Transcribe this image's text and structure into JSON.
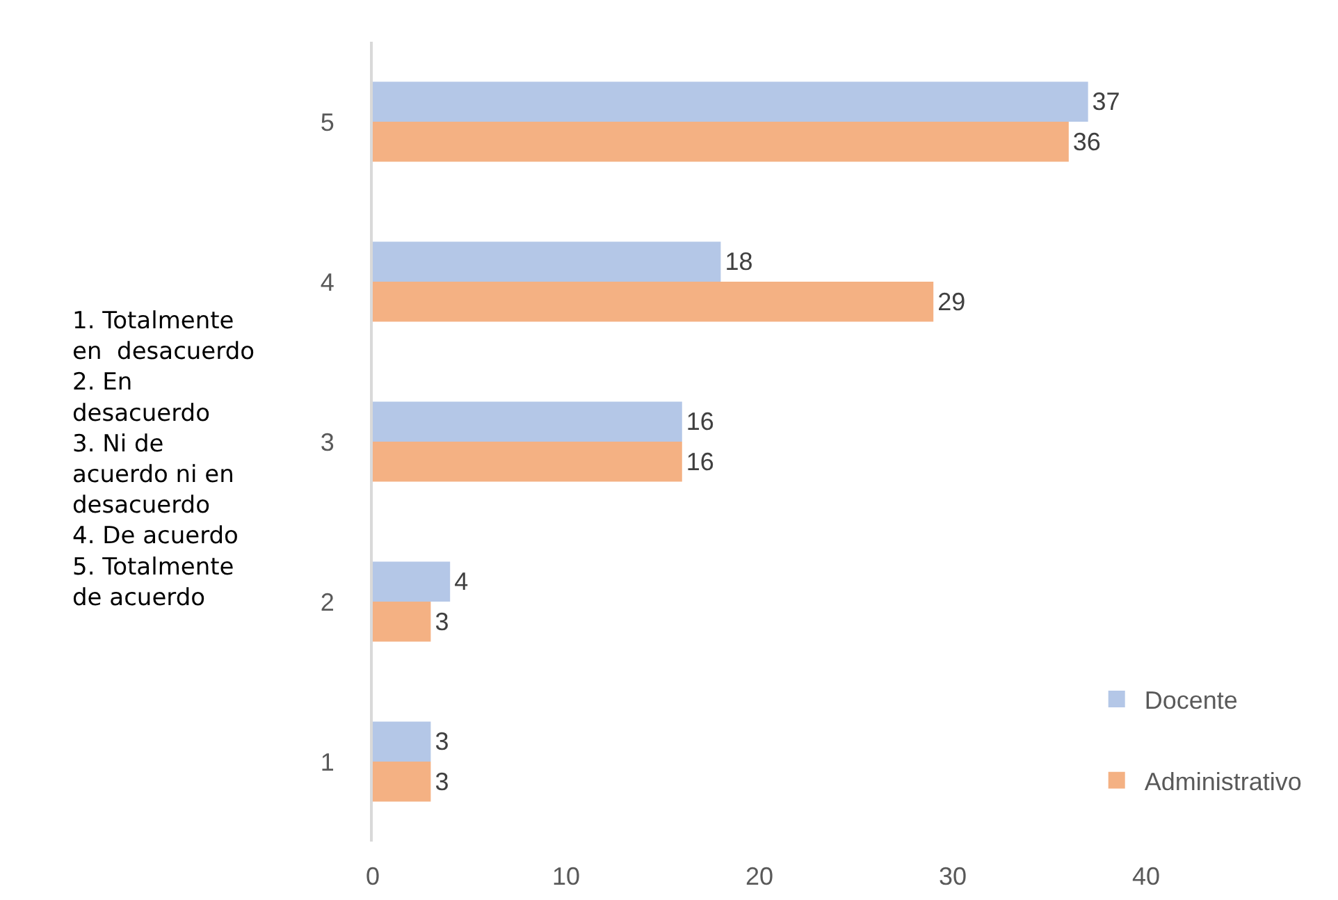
{
  "chart_data": {
    "type": "bar",
    "orientation": "horizontal",
    "categories": [
      "5",
      "4",
      "3",
      "2",
      "1"
    ],
    "series": [
      {
        "name": "Docente",
        "color": "#b4c7e7",
        "values": [
          37,
          18,
          16,
          4,
          3
        ]
      },
      {
        "name": "Administrativo",
        "color": "#f4b183",
        "values": [
          36,
          29,
          16,
          3,
          3
        ]
      }
    ],
    "xlim": [
      0,
      40
    ],
    "xticks": [
      0,
      10,
      20,
      30,
      40
    ],
    "data_labels": true,
    "grid": false,
    "legend": "bottom right",
    "annotations": [
      "1. Totalmente\nen  desacuerdo\n2. En\ndesacuerdo\n3. Ni de\nacuerdo ni en\ndesacuerdo\n4. De acuerdo\n5. Totalmente\nde acuerdo"
    ]
  }
}
